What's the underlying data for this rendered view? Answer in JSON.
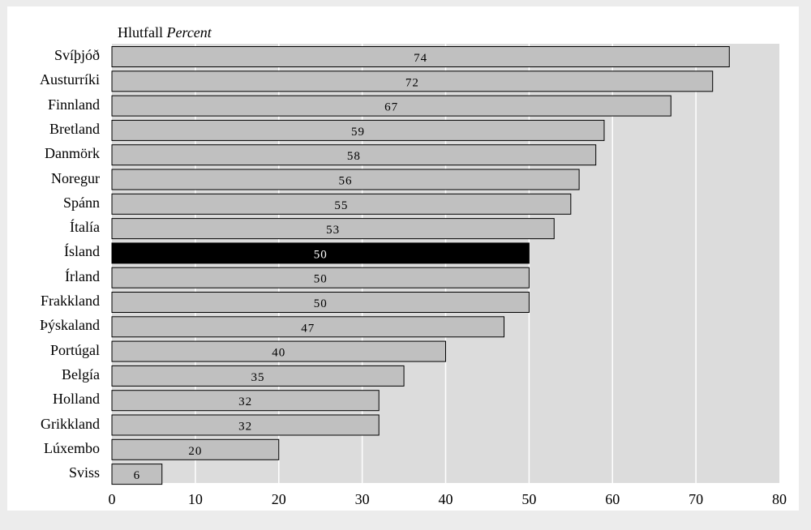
{
  "chart_data": {
    "type": "bar",
    "orientation": "horizontal",
    "title": "Hlutfall",
    "title_english": "Percent",
    "categories": [
      "Svíþjóð",
      "Austurríki",
      "Finnland",
      "Bretland",
      "Danmörk",
      "Noregur",
      "Spánn",
      "Ítalía",
      "Ísland",
      "Írland",
      "Frakkland",
      "Þýskaland",
      "Portúgal",
      "Belgía",
      "Holland",
      "Grikkland",
      "Lúxembo",
      "Sviss"
    ],
    "values": [
      74,
      72,
      67,
      59,
      58,
      56,
      55,
      53,
      50,
      50,
      50,
      47,
      40,
      35,
      32,
      32,
      20,
      6
    ],
    "highlight": "Ísland",
    "xlim": [
      0,
      80
    ],
    "xticks": [
      0,
      10,
      20,
      30,
      40,
      50,
      60,
      70,
      80
    ],
    "grid": true,
    "colors": {
      "bar": "#c0c0c0",
      "highlight": "#000000",
      "plot_bg": "#dcdcdc",
      "grid": "#ffffff",
      "frame": "#ffffff",
      "page": "#ececec"
    }
  }
}
